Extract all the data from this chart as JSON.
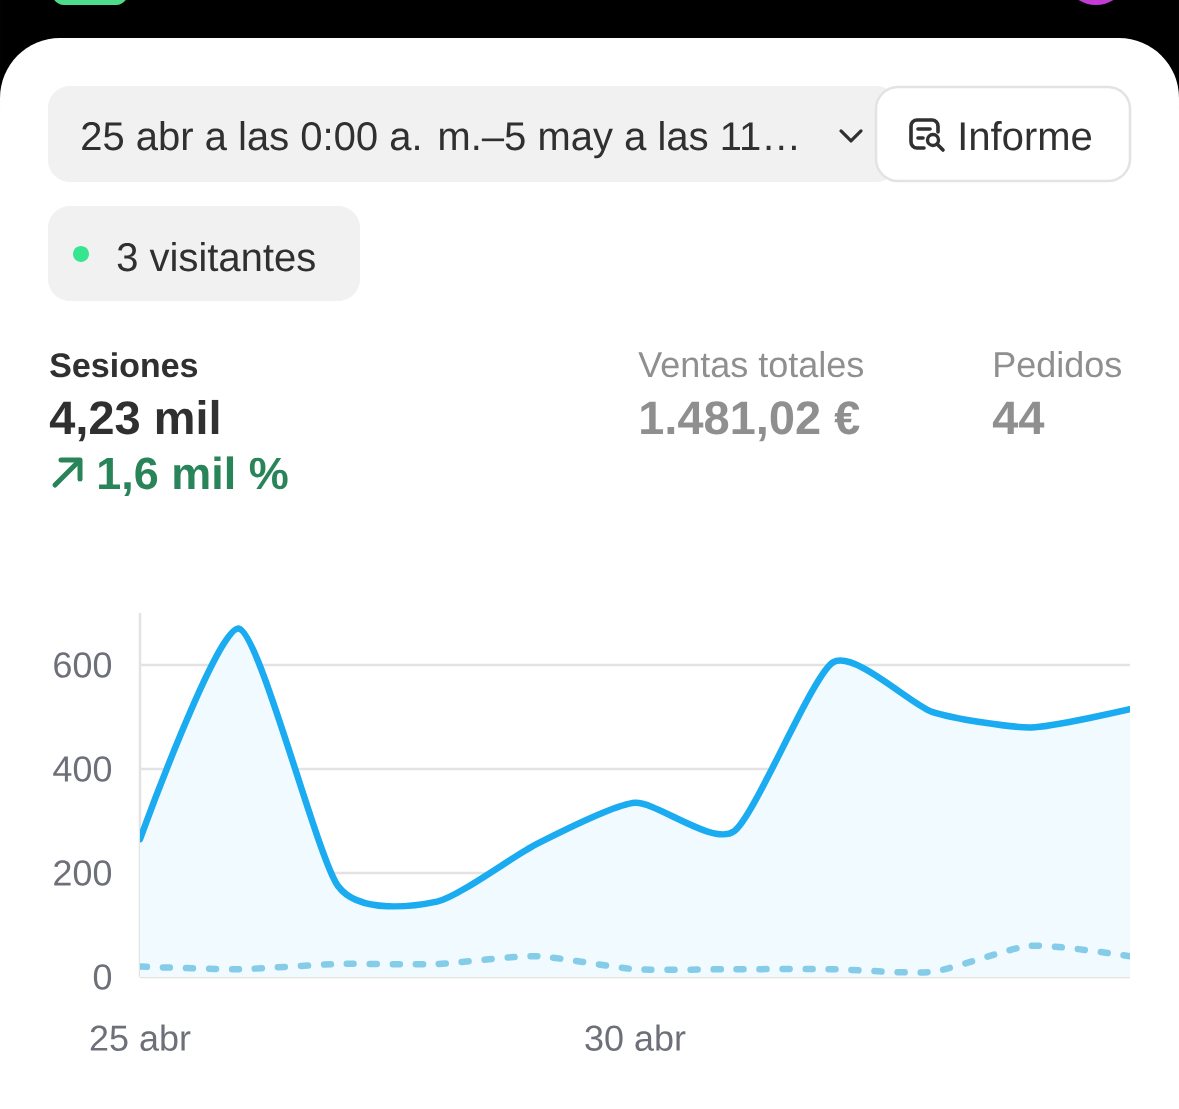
{
  "chart_data": {
    "type": "line",
    "categories": [
      "25 abr",
      null,
      null,
      null,
      null,
      "30 abr",
      null,
      null,
      null,
      null,
      null
    ],
    "series": [
      {
        "type": "area",
        "color": "#1aabf0",
        "values": [
          265,
          670,
          175,
          145,
          255,
          335,
          280,
          605,
          510,
          480,
          515
        ]
      },
      {
        "color": "#85cce9",
        "line_style": "dashed",
        "values": [
          20,
          15,
          25,
          25,
          40,
          15,
          15,
          15,
          10,
          60,
          40
        ]
      }
    ],
    "ylim": [
      0,
      700
    ],
    "yticks": [
      0,
      200,
      400,
      600
    ],
    "grid": "y",
    "annotations": [
      "25 abr a las 0:00 a. m.–5 may a las 11…",
      "Informe",
      "3 visitantes",
      "Sesiones",
      "4,23 mil",
      "1,6 mil %",
      "Ventas totales",
      "1.481,02 €",
      "Pedidos",
      "44"
    ]
  }
}
